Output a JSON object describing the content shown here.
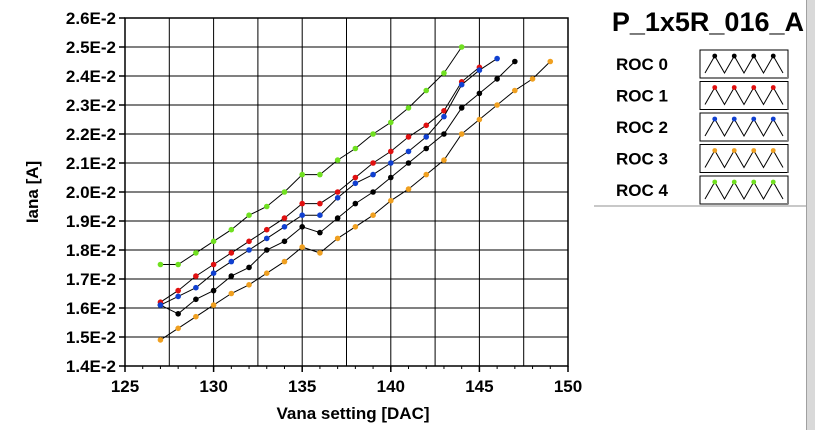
{
  "chart_data": {
    "type": "line",
    "title": "P_1x5R_016_A",
    "xlabel": "Vana setting [DAC]",
    "ylabel": "Iana [A]",
    "xlim": [
      125,
      150
    ],
    "ylim": [
      0.014,
      0.026
    ],
    "x_ticks": [
      125,
      130,
      135,
      140,
      145,
      150
    ],
    "x_tick_labels": [
      "125",
      "130",
      "135",
      "140",
      "145",
      "150"
    ],
    "y_ticks": [
      0.014,
      0.015,
      0.016,
      0.017,
      0.018,
      0.019,
      0.02,
      0.021,
      0.022,
      0.023,
      0.024,
      0.025,
      0.026
    ],
    "y_tick_labels": [
      "1.4E-2",
      "1.5E-2",
      "1.6E-2",
      "1.7E-2",
      "1.8E-2",
      "1.9E-2",
      "2.0E-2",
      "2.1E-2",
      "2.2E-2",
      "2.3E-2",
      "2.4E-2",
      "2.5E-2",
      "2.6E-2"
    ],
    "grid": true,
    "legend_position": "top-right",
    "series": [
      {
        "name": "ROC 0",
        "color": "#000000",
        "x": [
          127,
          128,
          129,
          130,
          131,
          132,
          133,
          134,
          135,
          136,
          137,
          138,
          139,
          140,
          141,
          142,
          143,
          144,
          145,
          146,
          147
        ],
        "y": [
          0.0161,
          0.0158,
          0.0163,
          0.0166,
          0.0171,
          0.0174,
          0.018,
          0.0183,
          0.0188,
          0.0186,
          0.0191,
          0.0196,
          0.02,
          0.0205,
          0.021,
          0.0215,
          0.022,
          0.0229,
          0.0234,
          0.0239,
          0.0245
        ]
      },
      {
        "name": "ROC 1",
        "color": "#e01010",
        "x": [
          127,
          128,
          129,
          130,
          131,
          132,
          133,
          134,
          135,
          136,
          137,
          138,
          139,
          140,
          141,
          142,
          143,
          144,
          145
        ],
        "y": [
          0.0162,
          0.0166,
          0.0171,
          0.0175,
          0.0179,
          0.0183,
          0.0187,
          0.0191,
          0.0196,
          0.0196,
          0.02,
          0.0205,
          0.021,
          0.0214,
          0.0219,
          0.0223,
          0.0228,
          0.0238,
          0.0243
        ]
      },
      {
        "name": "ROC 2",
        "color": "#1040d0",
        "x": [
          127,
          128,
          129,
          130,
          131,
          132,
          133,
          134,
          135,
          136,
          137,
          138,
          139,
          140,
          141,
          142,
          143,
          144,
          145,
          146
        ],
        "y": [
          0.0161,
          0.0164,
          0.0167,
          0.0172,
          0.0176,
          0.018,
          0.0184,
          0.0188,
          0.0192,
          0.0192,
          0.0198,
          0.0203,
          0.0206,
          0.021,
          0.0214,
          0.0219,
          0.0226,
          0.0237,
          0.0242,
          0.0246
        ]
      },
      {
        "name": "ROC 3",
        "color": "#f0a020",
        "x": [
          127,
          128,
          129,
          130,
          131,
          132,
          133,
          134,
          135,
          136,
          137,
          138,
          139,
          140,
          141,
          142,
          143,
          144,
          145,
          146,
          147,
          148,
          149
        ],
        "y": [
          0.0149,
          0.0153,
          0.0157,
          0.0161,
          0.0165,
          0.0168,
          0.0172,
          0.0176,
          0.0181,
          0.0179,
          0.0184,
          0.0188,
          0.0192,
          0.0197,
          0.0201,
          0.0206,
          0.0211,
          0.022,
          0.0225,
          0.023,
          0.0235,
          0.0239,
          0.0245
        ]
      },
      {
        "name": "ROC 4",
        "color": "#70e020",
        "x": [
          127,
          128,
          129,
          130,
          131,
          132,
          133,
          134,
          135,
          136,
          137,
          138,
          139,
          140,
          141,
          142,
          143,
          144
        ],
        "y": [
          0.0175,
          0.0175,
          0.0179,
          0.0183,
          0.0187,
          0.0192,
          0.0195,
          0.02,
          0.0206,
          0.0206,
          0.0211,
          0.0215,
          0.022,
          0.0224,
          0.0229,
          0.0235,
          0.0241,
          0.025
        ]
      }
    ]
  }
}
